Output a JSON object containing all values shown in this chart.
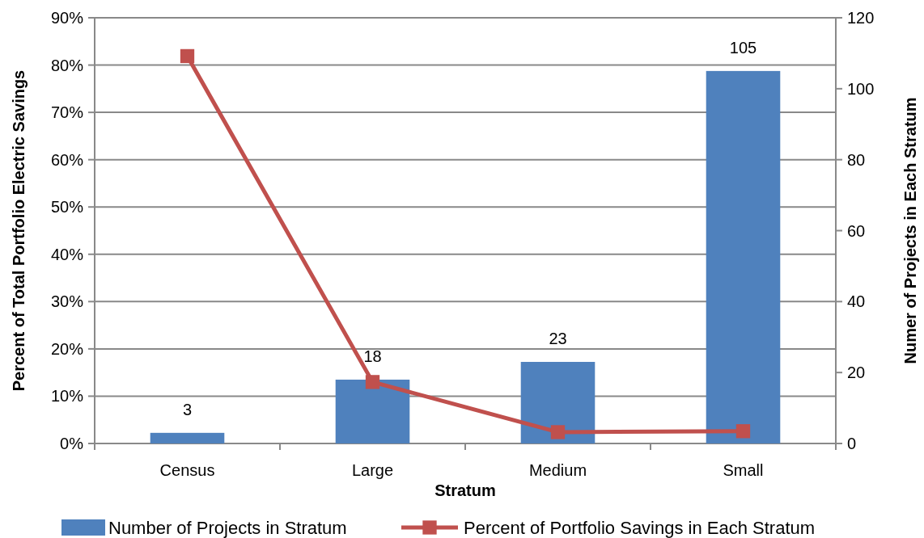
{
  "chart_data": {
    "type": "bar",
    "xlabel": "Stratum",
    "ylabel": "Percent of Total Portfolio Electric Savings",
    "y2label": "Numer of Projects in Each Stratum",
    "categories": [
      "Census",
      "Large",
      "Medium",
      "Small"
    ],
    "series": [
      {
        "name": "Number of Projects in Stratum",
        "axis": "y2",
        "color": "#4f81bd",
        "values": [
          3,
          18,
          23,
          105
        ],
        "value_labels": [
          "3",
          "18",
          "23",
          "105"
        ]
      },
      {
        "name": "Percent of Portfolio Savings in Each Stratum",
        "type": "line",
        "color": "#c0504d",
        "marker": "square",
        "values": [
          81.9,
          13.0,
          2.4,
          2.6
        ]
      }
    ],
    "ylim": [
      0,
      90
    ],
    "yticks": [
      {
        "value": 0,
        "label": "0%"
      },
      {
        "value": 10,
        "label": "10%"
      },
      {
        "value": 20,
        "label": "20%"
      },
      {
        "value": 30,
        "label": "30%"
      },
      {
        "value": 40,
        "label": "40%"
      },
      {
        "value": 50,
        "label": "50%"
      },
      {
        "value": 60,
        "label": "60%"
      },
      {
        "value": 70,
        "label": "70%"
      },
      {
        "value": 80,
        "label": "80%"
      },
      {
        "value": 90,
        "label": "90%"
      }
    ],
    "y2lim": [
      0,
      120
    ],
    "y2ticks": [
      0,
      20,
      40,
      60,
      80,
      100,
      120
    ],
    "grid": "y",
    "legend": "bottom"
  }
}
